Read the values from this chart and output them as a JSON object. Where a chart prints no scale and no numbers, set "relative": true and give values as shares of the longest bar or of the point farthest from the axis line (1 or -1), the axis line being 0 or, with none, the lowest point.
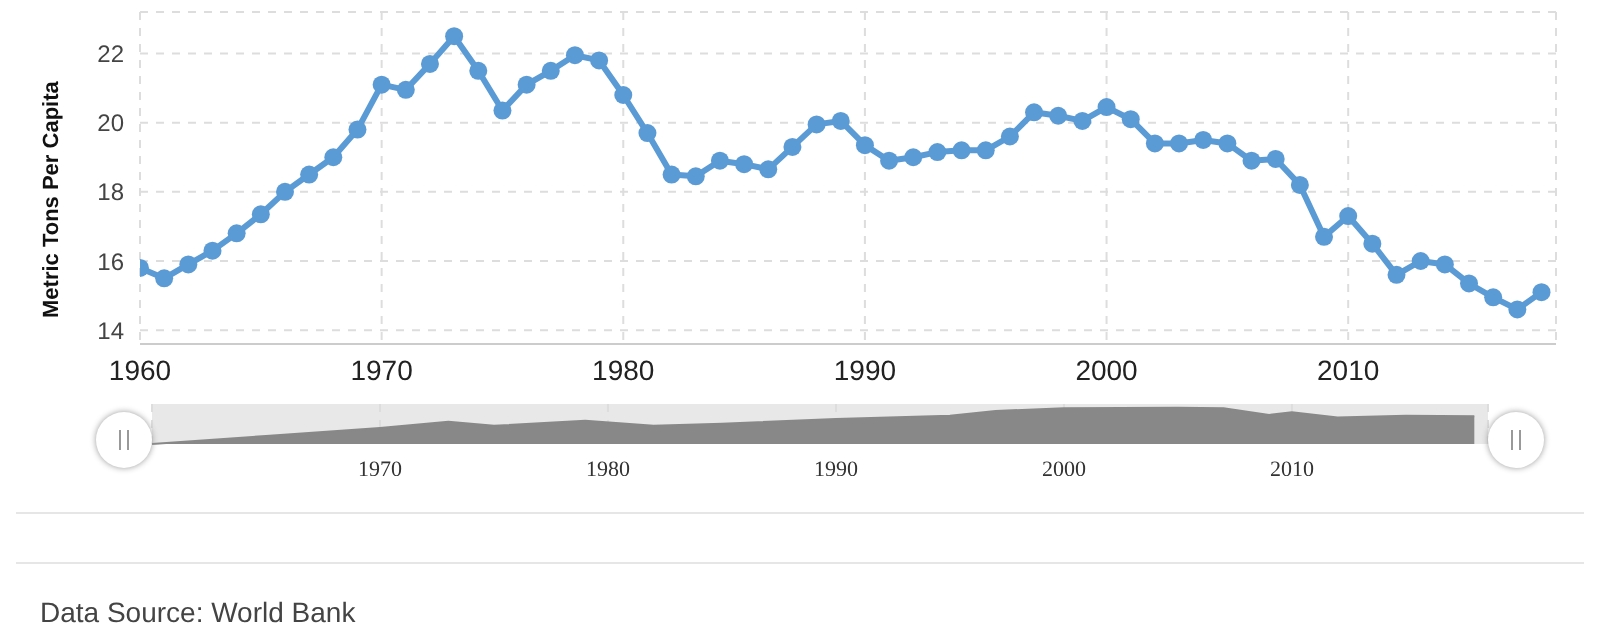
{
  "chart_data": [
    {
      "type": "line",
      "ylabel": "Metric Tons Per Capita",
      "x": [
        1960,
        1961,
        1962,
        1963,
        1964,
        1965,
        1966,
        1967,
        1968,
        1969,
        1970,
        1971,
        1972,
        1973,
        1974,
        1975,
        1976,
        1977,
        1978,
        1979,
        1980,
        1981,
        1982,
        1983,
        1984,
        1985,
        1986,
        1987,
        1988,
        1989,
        1990,
        1991,
        1992,
        1993,
        1994,
        1995,
        1996,
        1997,
        1998,
        1999,
        2000,
        2001,
        2002,
        2003,
        2004,
        2005,
        2006,
        2007,
        2008,
        2009,
        2010,
        2011,
        2012,
        2013,
        2014,
        2015,
        2016,
        2017,
        2018
      ],
      "series": [
        {
          "color": "#5b9bd5",
          "values": [
            15.8,
            15.5,
            15.9,
            16.3,
            16.8,
            17.35,
            18.0,
            18.5,
            19.0,
            19.8,
            21.1,
            20.95,
            21.7,
            22.5,
            21.5,
            20.35,
            21.1,
            21.5,
            21.95,
            21.8,
            20.8,
            19.7,
            18.5,
            18.45,
            18.9,
            18.8,
            18.65,
            19.3,
            19.95,
            20.05,
            19.35,
            18.9,
            19.0,
            19.15,
            19.2,
            19.2,
            19.6,
            20.3,
            20.2,
            20.05,
            20.45,
            20.1,
            19.4,
            19.4,
            19.5,
            19.4,
            18.9,
            18.95,
            18.2,
            16.7,
            17.3,
            16.5,
            15.6,
            16.0,
            15.9,
            15.35,
            14.95,
            14.6,
            15.1
          ]
        }
      ],
      "xlim": [
        1960,
        2018.6
      ],
      "xticks": [
        1960,
        1970,
        1980,
        1990,
        2000,
        2010
      ],
      "ylim": [
        13.6,
        23.2
      ],
      "yticks": [
        14,
        16,
        18,
        20,
        22
      ],
      "grid": true,
      "marker": "circle",
      "line_style": "solid",
      "legend": false,
      "annotations": [
        "Data Source: World Bank"
      ]
    },
    {
      "type": "area",
      "relative": true,
      "x": [
        1960,
        1965,
        1970,
        1973,
        1975,
        1979,
        1982,
        1985,
        1990,
        1995,
        1997,
        2000,
        2005,
        2007,
        2009,
        2010,
        2012,
        2015,
        2018
      ],
      "series": [
        {
          "color": "#888888",
          "values": [
            0,
            0.22,
            0.44,
            0.61,
            0.5,
            0.64,
            0.5,
            0.56,
            0.69,
            0.78,
            0.91,
            0.98,
            1,
            0.98,
            0.8,
            0.87,
            0.73,
            0.78,
            0.76
          ]
        }
      ],
      "xlim": [
        1960,
        2018.6
      ],
      "xticks": [
        1970,
        1980,
        1990,
        2000,
        2010
      ],
      "grid": "x",
      "legend": false
    }
  ]
}
